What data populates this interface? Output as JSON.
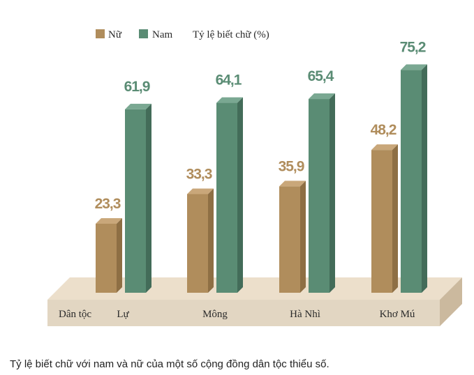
{
  "colors": {
    "female": "#b08d5c",
    "female_top": "#c9a77a",
    "female_side": "#8e6f44",
    "male": "#5a8c74",
    "male_top": "#7aa892",
    "male_side": "#436c59",
    "base_front": "#e2d6c2",
    "base_top": "#ecdfcb",
    "base_side": "#cbb99e",
    "label_female": "#b08d5c",
    "label_male": "#5a8c74",
    "text": "#2a2a2a"
  },
  "chart_data": {
    "type": "bar",
    "categories": [
      "Lự",
      "Mông",
      "Hà Nhì",
      "Khơ Mú"
    ],
    "category_axis_label": "Dân tộc",
    "legend_title": "Tỷ lệ biết chữ (%)",
    "legend_position": "top",
    "series": [
      {
        "name": "Nữ",
        "values": [
          23.3,
          33.3,
          35.9,
          48.2
        ]
      },
      {
        "name": "Nam",
        "values": [
          61.9,
          64.1,
          65.4,
          75.2
        ]
      }
    ],
    "value_labels": {
      "female": [
        "23,3",
        "33,3",
        "35,9",
        "48,2"
      ],
      "male": [
        "61,9",
        "64,1",
        "65,4",
        "75,2"
      ]
    },
    "ylim": [
      0,
      80
    ],
    "grid": false
  },
  "caption": "Tỷ lệ biết chữ với nam và nữ của một số cộng đồng dân tộc thiểu số."
}
